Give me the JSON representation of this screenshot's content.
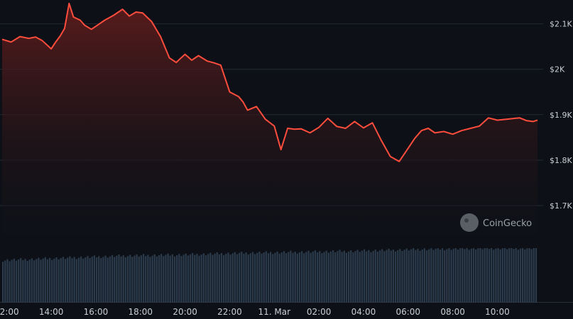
{
  "watermark": {
    "text": "CoinGecko",
    "icon": "coingecko-logo-icon"
  },
  "colors": {
    "background": "#0d1117",
    "line": "#ff4d3d",
    "area_top": "#6b1f1f",
    "volume": "#2c3b4c",
    "grid": "#232a33",
    "text": "#c9cdd4"
  },
  "chart_data": {
    "type": "area",
    "title": "",
    "xlabel": "",
    "ylabel": "",
    "x_range_hours": [
      11.8,
      35.8
    ],
    "ylim": [
      1625,
      2140
    ],
    "ytick_values": [
      1700,
      1800,
      1900,
      2000,
      2100
    ],
    "ytick_labels": [
      "$1.7K",
      "$1.8K",
      "$1.9K",
      "$2K",
      "$2.1K"
    ],
    "xtick_positions_hours": [
      12,
      14,
      16,
      18,
      20,
      22,
      24,
      26,
      28,
      30,
      32,
      34
    ],
    "xtick_labels": [
      "12:00",
      "14:00",
      "16:00",
      "18:00",
      "20:00",
      "22:00",
      "11. Mar",
      "02:00",
      "04:00",
      "06:00",
      "08:00",
      "10:00"
    ],
    "grid": "horizontal",
    "series": [
      {
        "x_hours": [
          11.8,
          12.2,
          12.6,
          13.0,
          13.3,
          13.6,
          14.0,
          14.2,
          14.4,
          14.6,
          14.8,
          15.0,
          15.3,
          15.5,
          15.8,
          16.1,
          16.4,
          16.8,
          17.2,
          17.5,
          17.8,
          18.1,
          18.5,
          18.9,
          19.3,
          19.6,
          19.8,
          20.0,
          20.3,
          20.6,
          21.0,
          21.3,
          21.6,
          22.0,
          22.4,
          22.6,
          22.8,
          23.2,
          23.6,
          24.0,
          24.3,
          24.6,
          24.9,
          25.2,
          25.6,
          26.0,
          26.4,
          26.8,
          27.2,
          27.6,
          28.0,
          28.4,
          28.8,
          29.2,
          29.6,
          30.0,
          30.3,
          30.6,
          30.9,
          31.2,
          31.6,
          32.0,
          32.4,
          32.8,
          33.2,
          33.6,
          34.0,
          34.4,
          34.8,
          35.0,
          35.3,
          35.6,
          35.8
        ],
        "values": [
          2066,
          2060,
          2072,
          2068,
          2071,
          2063,
          2045,
          2060,
          2073,
          2090,
          2145,
          2115,
          2108,
          2097,
          2088,
          2098,
          2108,
          2119,
          2132,
          2117,
          2126,
          2124,
          2105,
          2072,
          2025,
          2015,
          2024,
          2033,
          2020,
          2030,
          2018,
          2014,
          2009,
          1950,
          1940,
          1928,
          1910,
          1918,
          1890,
          1875,
          1823,
          1870,
          1868,
          1869,
          1860,
          1872,
          1892,
          1874,
          1870,
          1885,
          1871,
          1882,
          1843,
          1808,
          1797,
          1826,
          1848,
          1865,
          1870,
          1860,
          1863,
          1857,
          1865,
          1870,
          1875,
          1893,
          1888,
          1890,
          1892,
          1893,
          1887,
          1885,
          1888
        ]
      }
    ],
    "volume": {
      "start_hours": 11.8,
      "end_hours": 35.8,
      "count": 240,
      "relative_levels": [
        0.78,
        0.82,
        0.86,
        0.88,
        0.91,
        0.93,
        0.95,
        0.98,
        1.0,
        1.0
      ]
    }
  }
}
